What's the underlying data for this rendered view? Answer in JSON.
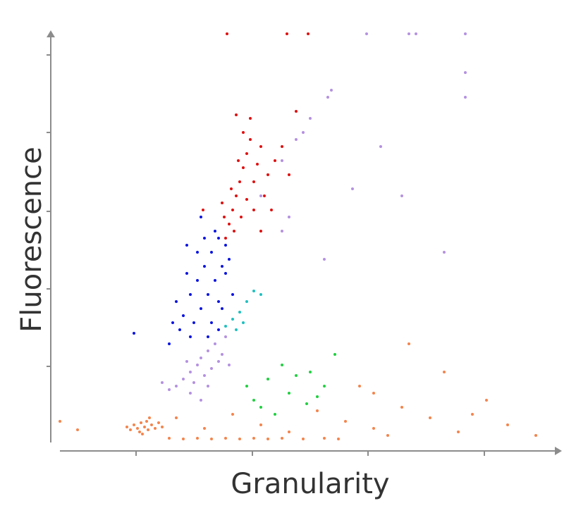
{
  "chart_data": {
    "type": "scatter",
    "xlabel": "Granularity",
    "ylabel": "Fluorescence",
    "xlim": [
      0,
      725
    ],
    "ylim": [
      0,
      583
    ],
    "xticks": [
      123,
      288,
      452,
      617
    ],
    "yticks": [
      108,
      218,
      328,
      440,
      550
    ],
    "tick_labels": false,
    "grid": false,
    "axis_color": "#8c8c8c",
    "series": [
      {
        "color": "#f4844c",
        "x": [
          120,
          125,
          130,
          135,
          140,
          128,
          145,
          138,
          150,
          132,
          115,
          155,
          160,
          142,
          110,
          170,
          190,
          210,
          230,
          250,
          270,
          290,
          310,
          330,
          360,
          390,
          410,
          180,
          220,
          260,
          300,
          340,
          380,
          420,
          460,
          500,
          540,
          580,
          620,
          650,
          690,
          15,
          40,
          560,
          510,
          460,
          600,
          440,
          480
        ],
        "y": [
          25,
          20,
          28,
          22,
          18,
          15,
          25,
          30,
          20,
          12,
          18,
          28,
          22,
          35,
          22,
          6,
          5,
          6,
          5,
          6,
          5,
          6,
          5,
          6,
          5,
          6,
          5,
          35,
          20,
          40,
          25,
          15,
          45,
          30,
          20,
          50,
          35,
          15,
          60,
          25,
          10,
          30,
          18,
          100,
          140,
          70,
          40,
          80,
          10
        ]
      },
      {
        "color": "#b491e0",
        "x": [
          200,
          210,
          220,
          230,
          215,
          205,
          225,
          240,
          190,
          180,
          235,
          245,
          200,
          170,
          215,
          250,
          195,
          225,
          160,
          255,
          300,
          330,
          350,
          370,
          395,
          400,
          360,
          330,
          390,
          430,
          500,
          560,
          590,
          590,
          450,
          520,
          590,
          510,
          470,
          340
        ],
        "y": [
          100,
          110,
          95,
          105,
          120,
          85,
          130,
          115,
          90,
          80,
          140,
          125,
          70,
          75,
          60,
          150,
          115,
          80,
          85,
          110,
          350,
          400,
          430,
          460,
          490,
          500,
          440,
          300,
          260,
          360,
          350,
          270,
          525,
          490,
          580,
          580,
          580,
          580,
          420,
          320
        ]
      },
      {
        "color": "#0a14e0",
        "x": [
          200,
          210,
          220,
          230,
          240,
          215,
          225,
          235,
          245,
          205,
          190,
          180,
          195,
          185,
          230,
          240,
          250,
          250,
          220,
          210,
          200,
          175,
          170,
          225,
          245,
          235,
          215,
          255,
          120,
          195,
          260,
          240
        ],
        "y": [
          210,
          230,
          250,
          270,
          290,
          190,
          210,
          230,
          250,
          170,
          180,
          200,
          240,
          160,
          170,
          200,
          240,
          280,
          290,
          270,
          150,
          170,
          140,
          150,
          190,
          300,
          320,
          260,
          155,
          280,
          210,
          160
        ]
      },
      {
        "color": "#e01010",
        "x": [
          250,
          255,
          260,
          265,
          270,
          275,
          280,
          285,
          262,
          272,
          280,
          290,
          295,
          300,
          258,
          248,
          268,
          290,
          305,
          310,
          320,
          330,
          275,
          285,
          265,
          245,
          300,
          315,
          340,
          218,
          350,
          252,
          337,
          367
        ],
        "y": [
          290,
          310,
          330,
          350,
          370,
          390,
          410,
          430,
          300,
          320,
          345,
          370,
          395,
          420,
          360,
          320,
          400,
          330,
          350,
          380,
          400,
          420,
          440,
          460,
          465,
          340,
          300,
          330,
          380,
          330,
          470,
          580,
          580,
          580
        ]
      },
      {
        "color": "#20c0c0",
        "x": [
          250,
          260,
          270,
          280,
          290,
          300,
          275,
          265
        ],
        "y": [
          165,
          175,
          185,
          200,
          215,
          210,
          170,
          160
        ]
      },
      {
        "color": "#20d040",
        "x": [
          290,
          310,
          330,
          350,
          370,
          390,
          405,
          340,
          365,
          300,
          320,
          380,
          280
        ],
        "y": [
          60,
          90,
          110,
          95,
          100,
          80,
          125,
          70,
          55,
          50,
          40,
          65,
          80
        ]
      }
    ]
  }
}
